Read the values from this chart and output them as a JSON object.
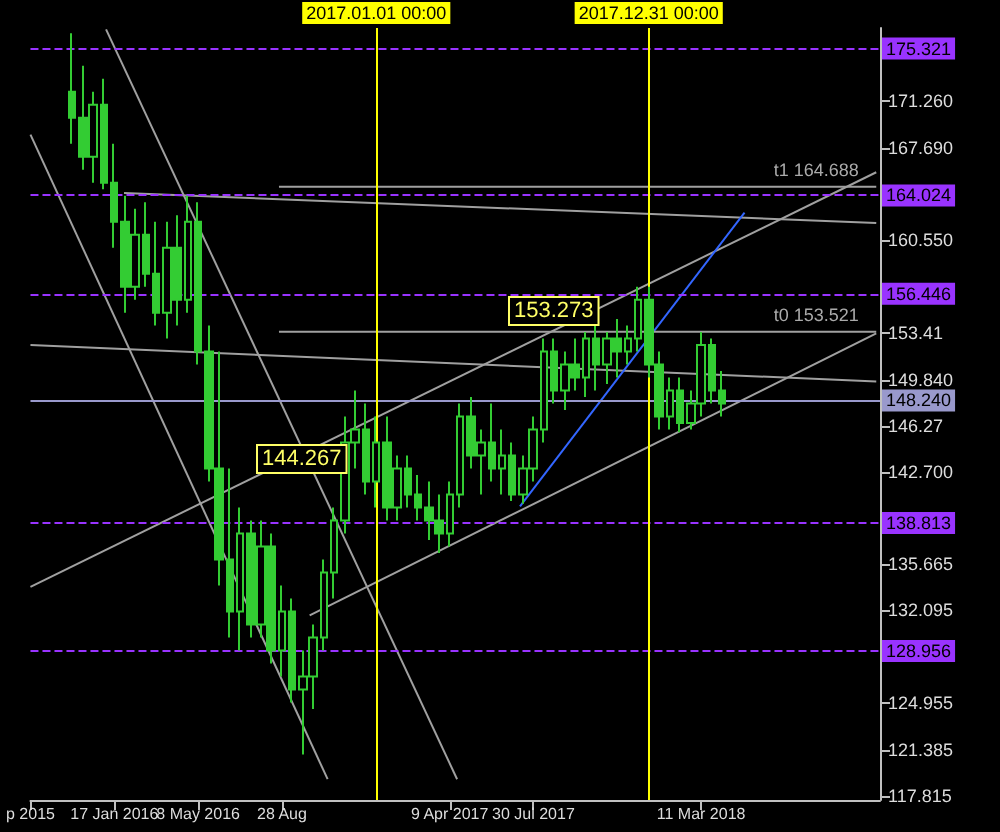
{
  "chart_data": {
    "type": "candlestick",
    "color": "#33cc33",
    "marker": "none",
    "x": [
      "2015-11-22",
      "2015-12-06",
      "2015-12-20",
      "2016-01-03",
      "2016-01-17",
      "2016-01-31",
      "2016-02-14",
      "2016-02-28",
      "2016-03-13",
      "2016-03-27",
      "2016-04-10",
      "2016-04-24",
      "2016-05-08",
      "2016-05-22",
      "2016-06-05",
      "2016-06-19",
      "2016-07-03",
      "2016-07-17",
      "2016-07-31",
      "2016-08-14",
      "2016-08-28",
      "2016-09-11",
      "2016-09-25",
      "2016-10-09",
      "2016-10-23",
      "2016-11-06",
      "2016-11-20",
      "2016-12-04",
      "2016-12-18",
      "2017-01-01",
      "2017-01-15",
      "2017-01-29",
      "2017-02-12",
      "2017-02-26",
      "2017-03-12",
      "2017-03-26",
      "2017-04-09",
      "2017-04-23",
      "2017-05-07",
      "2017-05-21",
      "2017-06-04",
      "2017-06-18",
      "2017-07-02",
      "2017-07-16",
      "2017-07-30",
      "2017-08-13",
      "2017-08-27",
      "2017-09-10",
      "2017-09-24",
      "2017-10-08",
      "2017-10-22",
      "2017-11-05",
      "2017-11-19",
      "2017-12-03",
      "2017-12-17",
      "2017-12-31",
      "2018-01-14",
      "2018-01-28",
      "2018-02-11",
      "2018-02-25",
      "2018-03-11",
      "2018-03-25",
      "2018-04-08"
    ],
    "ohlc": [
      [
        172,
        176.5,
        168,
        170
      ],
      [
        170,
        174,
        166,
        167
      ],
      [
        167,
        172,
        165,
        171
      ],
      [
        171,
        173,
        164.5,
        165
      ],
      [
        165,
        168,
        160,
        162
      ],
      [
        162,
        164,
        155,
        157
      ],
      [
        157,
        163,
        156,
        161
      ],
      [
        161,
        163.5,
        157,
        158
      ],
      [
        158,
        162,
        154,
        155
      ],
      [
        155,
        162,
        153,
        160
      ],
      [
        160,
        162.5,
        154,
        156
      ],
      [
        156,
        164,
        155,
        162
      ],
      [
        162,
        163.5,
        151,
        152
      ],
      [
        152,
        154,
        142,
        143
      ],
      [
        143,
        152,
        134,
        136
      ],
      [
        136,
        143,
        130,
        132
      ],
      [
        132,
        140,
        129,
        138
      ],
      [
        138,
        139,
        130,
        131
      ],
      [
        131,
        139,
        130,
        137
      ],
      [
        137,
        138,
        128,
        129
      ],
      [
        129,
        134,
        127,
        132
      ],
      [
        132,
        133,
        125,
        126
      ],
      [
        126,
        129,
        121,
        127
      ],
      [
        127,
        131,
        124.5,
        130
      ],
      [
        130,
        136,
        129,
        135
      ],
      [
        135,
        140,
        133,
        139
      ],
      [
        139,
        147,
        138,
        145
      ],
      [
        145,
        149,
        143,
        146
      ],
      [
        146,
        148,
        141,
        142
      ],
      [
        142,
        147,
        140,
        145
      ],
      [
        145,
        147,
        139,
        140
      ],
      [
        140,
        144,
        139,
        143
      ],
      [
        143,
        144,
        140,
        141
      ],
      [
        141,
        142.5,
        139,
        140
      ],
      [
        140,
        142,
        137.5,
        139
      ],
      [
        139,
        141,
        136.5,
        138
      ],
      [
        138,
        142,
        137,
        141
      ],
      [
        141,
        148,
        140,
        147
      ],
      [
        147,
        148.5,
        143,
        144
      ],
      [
        144,
        146,
        141,
        145
      ],
      [
        145,
        148,
        142,
        143
      ],
      [
        143,
        146,
        141,
        144
      ],
      [
        144,
        145,
        140.5,
        141
      ],
      [
        141,
        144,
        140.3,
        143
      ],
      [
        143,
        147,
        142,
        146
      ],
      [
        146,
        153,
        145,
        152
      ],
      [
        152,
        153,
        148,
        149
      ],
      [
        149,
        152,
        147.5,
        151
      ],
      [
        151,
        153,
        149,
        150
      ],
      [
        150,
        153.5,
        148.5,
        153
      ],
      [
        153,
        154,
        149,
        151
      ],
      [
        151,
        153.5,
        149.5,
        153
      ],
      [
        153,
        154.5,
        150,
        152
      ],
      [
        152,
        154,
        151,
        153
      ],
      [
        153,
        157,
        152,
        156
      ],
      [
        156,
        157,
        150,
        151
      ],
      [
        151,
        152,
        146,
        147
      ],
      [
        147,
        150,
        146,
        149
      ],
      [
        149,
        150,
        145.8,
        146.5
      ],
      [
        146.5,
        149,
        146,
        148
      ],
      [
        148,
        153.5,
        147,
        152.5
      ],
      [
        152.5,
        153,
        148,
        149
      ],
      [
        149,
        150.5,
        147,
        148
      ]
    ],
    "series": [
      {
        "type": "line",
        "color": "#a0a0a0",
        "x": [
          "2015-09-27",
          "2016-10-28"
        ],
        "values": [
          168.7,
          119.1
        ]
      },
      {
        "type": "line",
        "color": "#a0a0a0",
        "x": [
          "2016-01-06",
          "2017-04-19"
        ],
        "values": [
          176.8,
          119.1
        ]
      },
      {
        "type": "line",
        "color": "#a0a0a0",
        "x": [
          "2015-09-27",
          "2018-10-31"
        ],
        "values": [
          133.9,
          165.8
        ]
      },
      {
        "type": "line",
        "color": "#a0a0a0",
        "x": [
          "2016-10-04",
          "2018-10-31"
        ],
        "values": [
          131.7,
          153.4
        ]
      },
      {
        "type": "line",
        "color": "#a0a0a0",
        "x": [
          "2015-09-27",
          "2018-10-31"
        ],
        "values": [
          152.5,
          149.7
        ]
      },
      {
        "type": "line",
        "color": "#a0a0a0",
        "x": [
          "2016-01-30",
          "2018-10-31"
        ],
        "values": [
          164.2,
          161.9
        ]
      },
      {
        "type": "line",
        "color": "#3366ff",
        "x": [
          "2017-07-12",
          "2018-05-08"
        ],
        "values": [
          140.1,
          162.7
        ]
      },
      {
        "type": "line",
        "color": "#a0a0a0",
        "name": "t1 164.688",
        "x": [
          "2016-08-24",
          "2018-10-31"
        ],
        "values": [
          164.688,
          164.688
        ]
      },
      {
        "type": "line",
        "color": "#a0a0a0",
        "name": "t0 153.521",
        "x": [
          "2016-08-24",
          "2018-10-31"
        ],
        "values": [
          153.521,
          153.521
        ]
      }
    ],
    "xlim": [
      "2015-09-27",
      "2018-11-05"
    ],
    "xticks": [
      {
        "value": "2015-09-27",
        "label": "p 2015"
      },
      {
        "value": "2016-01-17",
        "label": "17 Jan 2016"
      },
      {
        "value": "2016-05-08",
        "label": "8 May 2016"
      },
      {
        "value": "2016-08-28",
        "label": "28 Aug"
      },
      {
        "value": "2017-04-09",
        "label": "9 Apr 2017"
      },
      {
        "value": "2017-07-30",
        "label": "30 Jul 2017"
      },
      {
        "value": "2018-03-11",
        "label": "11 Mar 2018"
      }
    ],
    "ylim": [
      117.5,
      176.9
    ],
    "yticks": [
      117.815,
      121.385,
      124.955,
      132.095,
      135.665,
      {
        "value": 142.7,
        "label": "142.700"
      },
      146.27,
      {
        "value": 149.84,
        "label": "149.840"
      },
      153.41,
      {
        "value": 160.55,
        "label": "160.550"
      },
      {
        "value": 167.69,
        "label": "167.690"
      },
      {
        "value": 171.26,
        "label": "171.260"
      }
    ],
    "ref_lines": [
      {
        "axis": "y",
        "value": 175.321,
        "label": "175.321",
        "color": "#9933ff",
        "line_style": "dashed"
      },
      {
        "axis": "y",
        "value": 164.024,
        "label": "164.024",
        "color": "#9933ff",
        "line_style": "dashed"
      },
      {
        "axis": "y",
        "value": 156.446,
        "label": "156.446",
        "color": "#9933ff",
        "line_style": "dashed"
      },
      {
        "axis": "y",
        "value": 148.24,
        "label": "148.240",
        "color": "#9999cc",
        "line_style": "solid"
      },
      {
        "axis": "y",
        "value": 138.813,
        "label": "138.813",
        "color": "#9933ff",
        "line_style": "dashed"
      },
      {
        "axis": "y",
        "value": 128.956,
        "label": "128.956",
        "color": "#9933ff",
        "line_style": "dashed"
      },
      {
        "axis": "x",
        "value": "2017-01-01",
        "label": "2017.01.01 00:00",
        "color": "#ffff00",
        "line_style": "solid"
      },
      {
        "axis": "x",
        "value": "2017-12-31",
        "label": "2017.12.31 00:00",
        "color": "#ffff00",
        "line_style": "solid"
      }
    ],
    "annotations": [
      "144.267",
      "153.273"
    ]
  }
}
